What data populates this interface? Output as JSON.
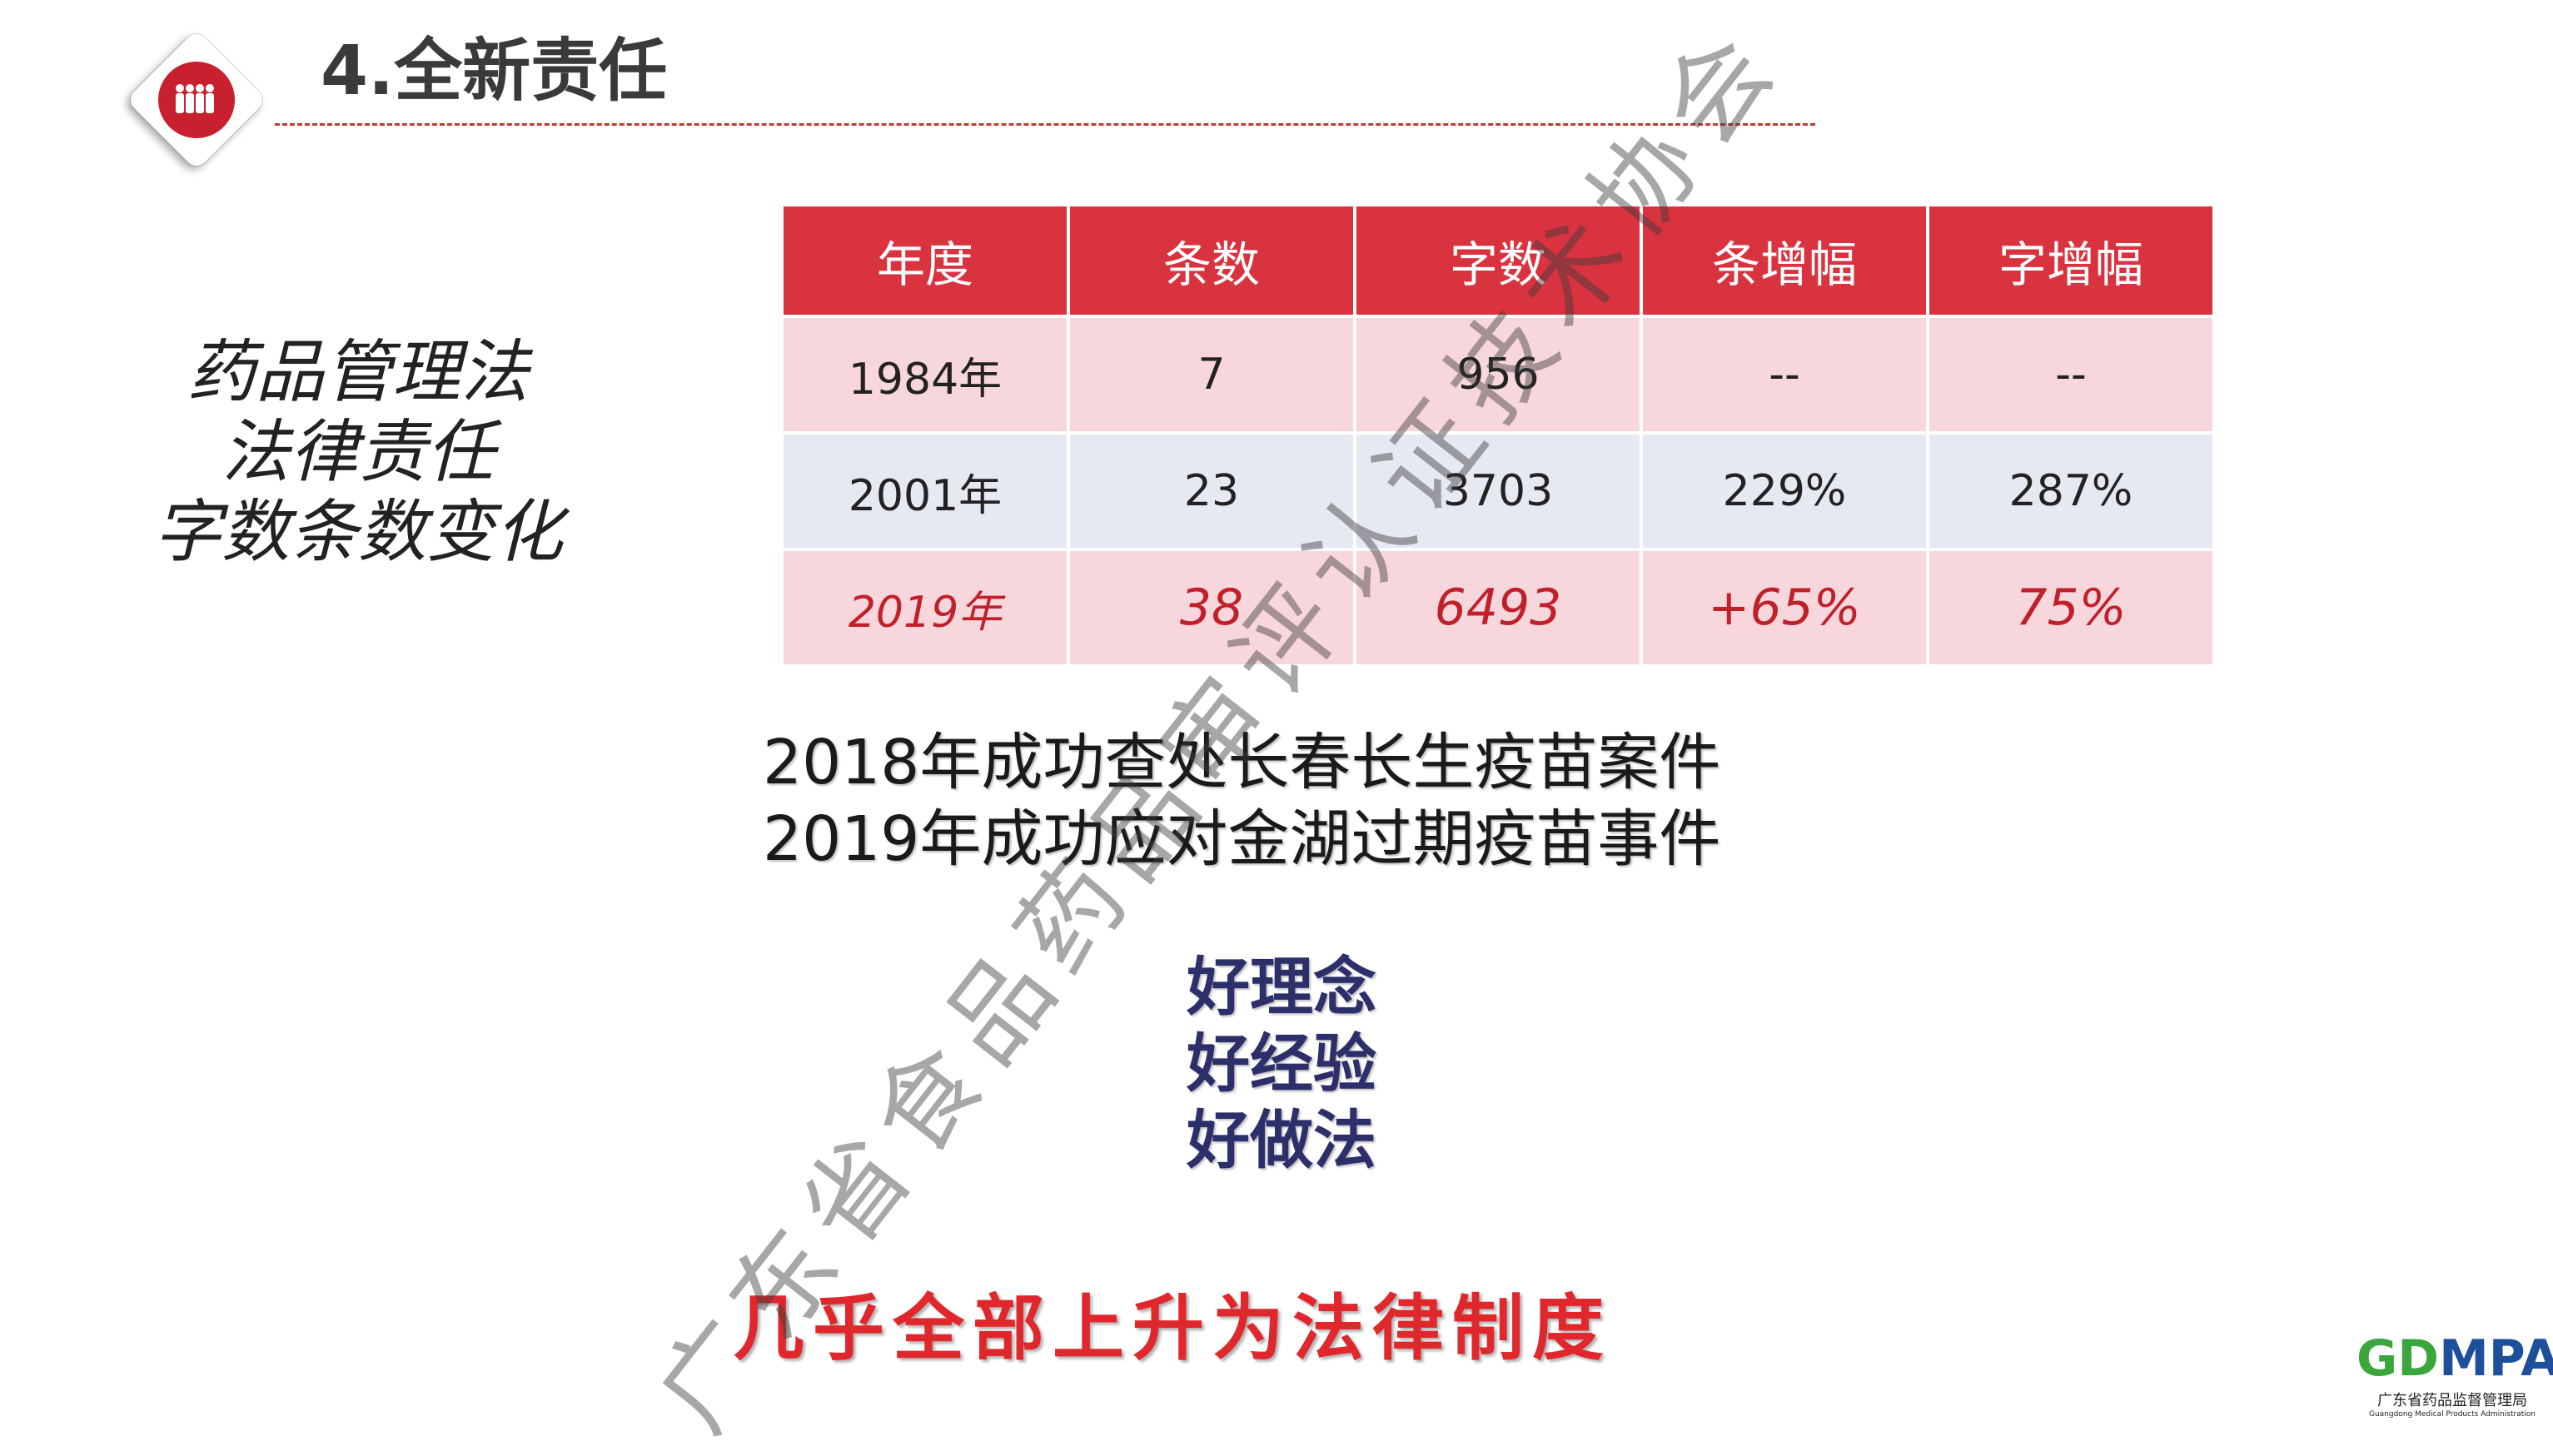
{
  "header": {
    "title": "4.全新责任",
    "icon": "people-group-icon"
  },
  "left": {
    "lines": [
      "药品管理法",
      "法律责任",
      "字数条数变化"
    ]
  },
  "table": {
    "headers": [
      "年度",
      "条数",
      "字数",
      "条增幅",
      "字增幅"
    ],
    "rows": [
      [
        "1984年",
        "7",
        "956",
        "--",
        "--"
      ],
      [
        "2001年",
        "23",
        "3703",
        "229%",
        "287%"
      ],
      [
        "2019年",
        "38",
        "6493",
        "+65%",
        "75%"
      ]
    ]
  },
  "events": [
    "2018年成功查处长春长生疫苗案件",
    "2019年成功应对金湖过期疫苗事件"
  ],
  "good": [
    "好理念",
    "好经验",
    "好做法"
  ],
  "bottom": "几乎全部上升为法律制度",
  "watermark": "广东省食品药品审评认证技术协会",
  "logo": {
    "mark_g": "GD",
    "mark_b": "MPA",
    "cn": "广东省药品监督管理局",
    "en": "Guangdong Medical Products Administration"
  },
  "colors": {
    "accent": "#d9333f",
    "row_pink": "#f8d7dc",
    "row_blue": "#e6e8f2",
    "navy": "#2c2f6a"
  }
}
